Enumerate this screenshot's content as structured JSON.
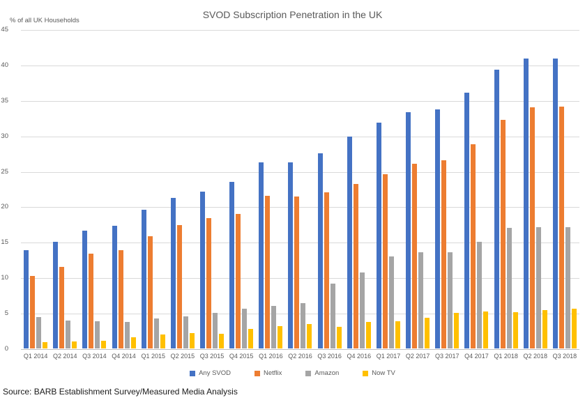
{
  "chart_data": {
    "type": "bar",
    "title": "SVOD Subscription Penetration in the UK",
    "ylabel": "% of all UK Households",
    "xlabel": "",
    "ylim": [
      0,
      45
    ],
    "ytick_step": 5,
    "grid": true,
    "legend_position": "bottom",
    "categories": [
      "Q1 2014",
      "Q2 2014",
      "Q3 2014",
      "Q4 2014",
      "Q1 2015",
      "Q2 2015",
      "Q3 2015",
      "Q4 2015",
      "Q1 2016",
      "Q2 2016",
      "Q3 2016",
      "Q4 2016",
      "Q1 2017",
      "Q2 2017",
      "Q3 2017",
      "Q4 2017",
      "Q1 2018",
      "Q2 2018",
      "Q3 2018"
    ],
    "series": [
      {
        "name": "Any SVOD",
        "color": "#4472C4",
        "values": [
          13.9,
          15.0,
          16.6,
          17.3,
          19.6,
          21.2,
          22.1,
          23.5,
          26.2,
          26.2,
          27.5,
          29.9,
          31.8,
          33.3,
          33.7,
          36.1,
          39.3,
          40.9,
          40.9
        ]
      },
      {
        "name": "Netflix",
        "color": "#ED7D31",
        "values": [
          10.2,
          11.5,
          13.4,
          13.9,
          15.8,
          17.4,
          18.4,
          19.0,
          21.5,
          21.4,
          22.0,
          23.2,
          24.6,
          26.0,
          26.5,
          28.8,
          32.2,
          34.0,
          34.1
        ]
      },
      {
        "name": "Amazon",
        "color": "#A5A5A5",
        "values": [
          4.4,
          3.9,
          3.8,
          3.7,
          4.2,
          4.5,
          5.0,
          5.6,
          6.0,
          6.4,
          9.1,
          10.7,
          13.0,
          13.6,
          13.6,
          15.0,
          17.0,
          17.1,
          17.1
        ]
      },
      {
        "name": "Now TV",
        "color": "#FFC000",
        "values": [
          0.9,
          1.0,
          1.1,
          1.6,
          2.0,
          2.2,
          2.1,
          2.8,
          3.1,
          3.4,
          3.0,
          3.7,
          3.8,
          4.3,
          5.0,
          5.2,
          5.1,
          5.4,
          5.6
        ]
      }
    ]
  },
  "source": "Source: BARB Establishment Survey/Measured Media Analysis",
  "colors": {
    "gridline": "#D9D9D9",
    "axis_line": "#BFBFBF",
    "text": "#595959"
  }
}
